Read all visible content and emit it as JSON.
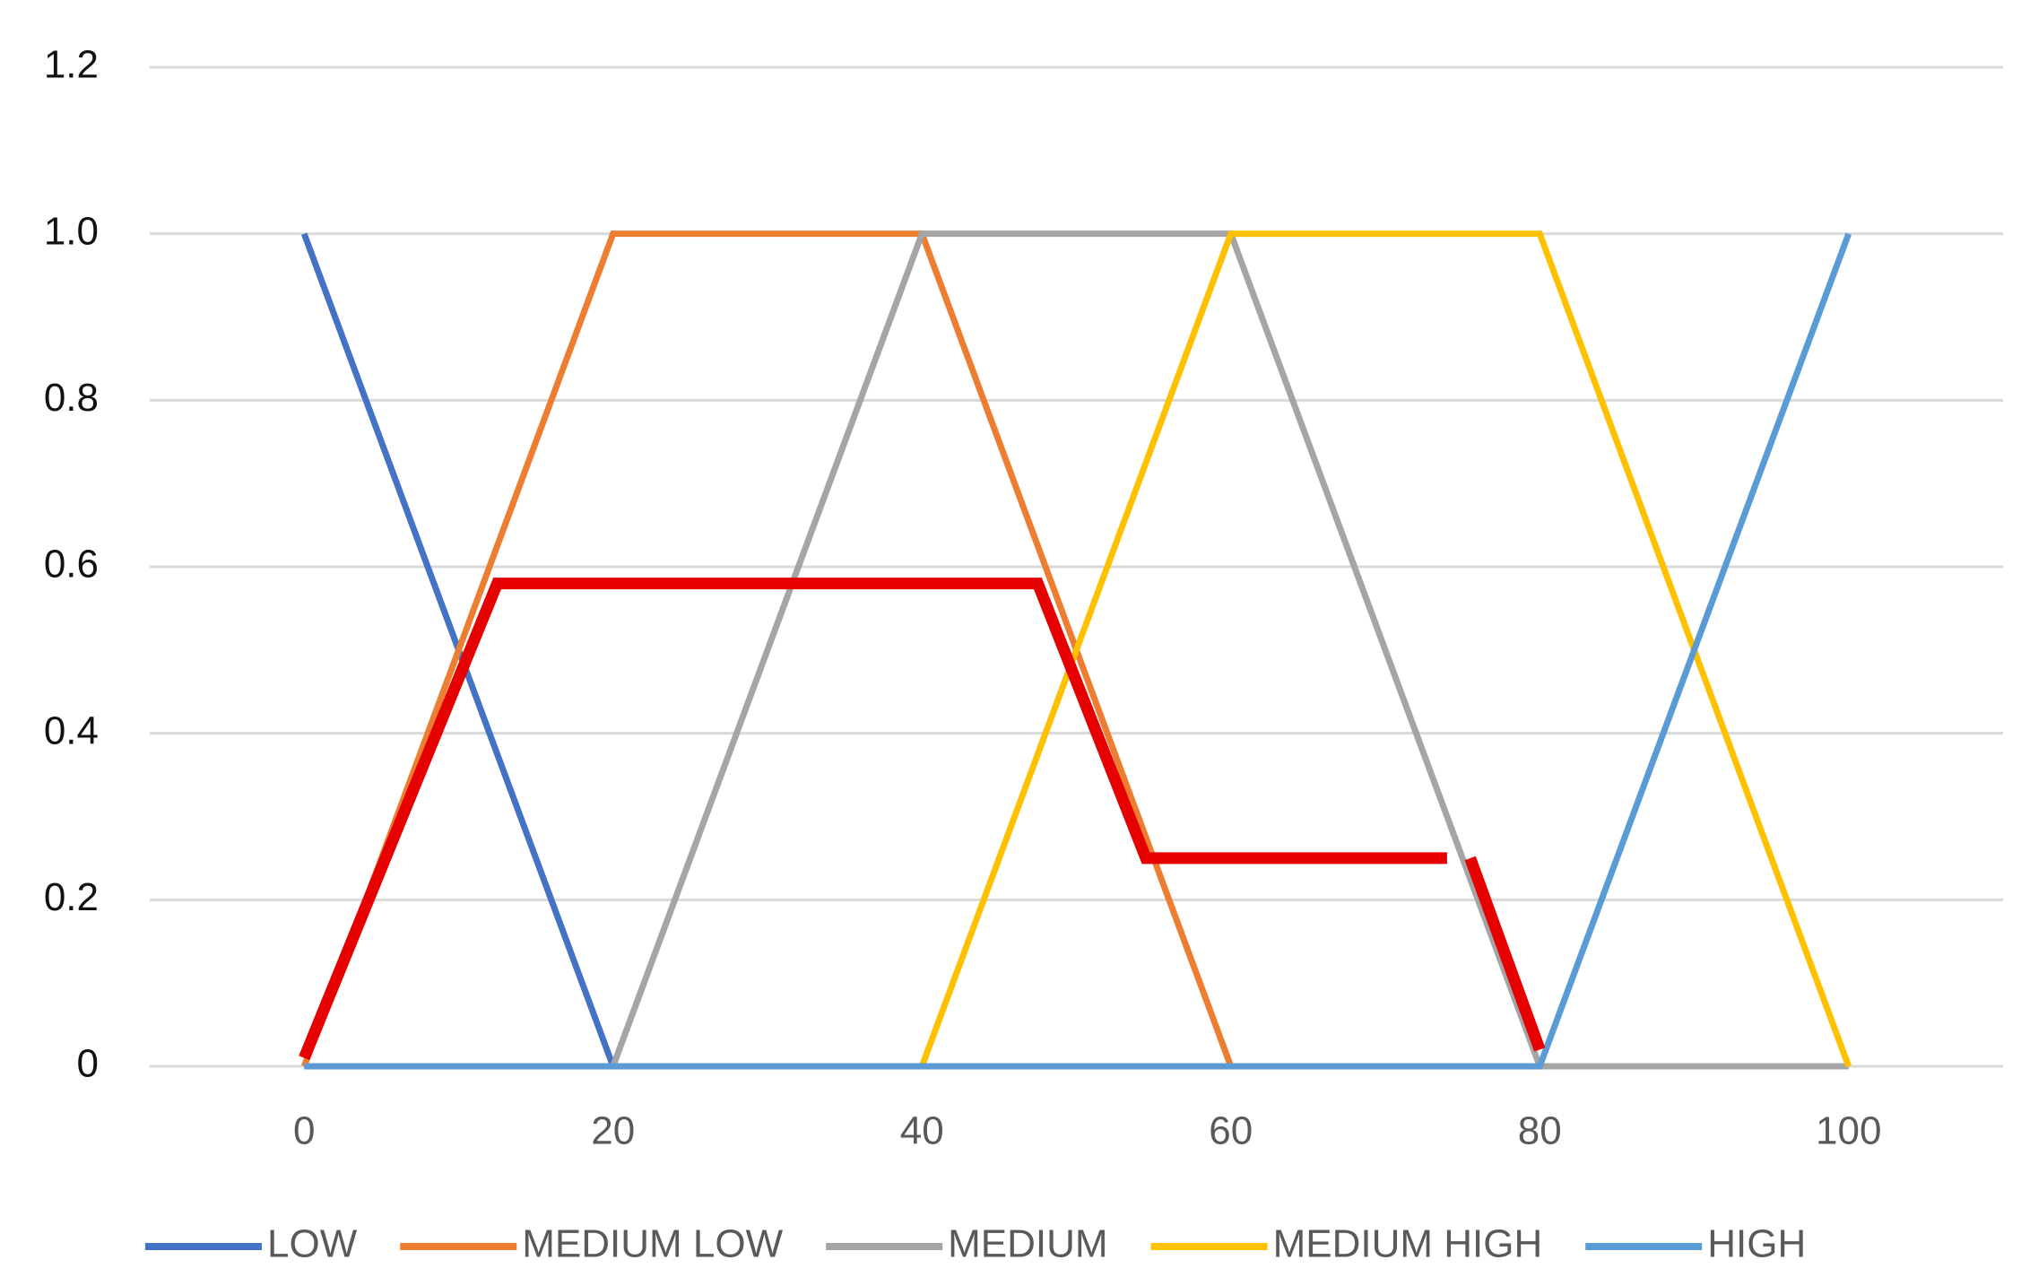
{
  "chart_data": {
    "type": "line",
    "xlim": [
      -10,
      110
    ],
    "xticks": [
      0,
      20,
      40,
      60,
      80,
      100
    ],
    "ylim": [
      0,
      1.2
    ],
    "yticks": [
      0,
      0.2,
      0.4,
      0.6,
      0.8,
      {
        "value": 1,
        "label": "1.0"
      },
      1.2
    ],
    "grid": true,
    "legend": "bottom",
    "series": [
      {
        "name": "LOW",
        "color": "#4472c4",
        "x": [
          0,
          20
        ],
        "values": [
          1,
          0
        ]
      },
      {
        "name": "MEDIUM LOW",
        "color": "#ed7d31",
        "x": [
          0,
          20,
          40,
          60
        ],
        "values": [
          0,
          1,
          1,
          0
        ]
      },
      {
        "name": "MEDIUM",
        "color": "#a5a5a5",
        "x": [
          20,
          40,
          60,
          80,
          100
        ],
        "values": [
          0,
          1,
          1,
          0,
          0
        ]
      },
      {
        "name": "MEDIUM HIGH",
        "color": "#ffc000",
        "x": [
          40,
          60,
          80,
          100
        ],
        "values": [
          0,
          1,
          1,
          0
        ]
      },
      {
        "name": "HIGH",
        "color": "#5b9bd5",
        "x": [
          0,
          80,
          100
        ],
        "values": [
          0,
          0,
          1
        ]
      },
      {
        "color": "#e60000",
        "x": [
          0,
          12.5,
          47.5,
          54.5,
          74,
          75,
          75.5,
          80
        ],
        "values": [
          0.01,
          0.58,
          0.58,
          0.25,
          0.25,
          null,
          0.25,
          0.02
        ]
      }
    ]
  }
}
